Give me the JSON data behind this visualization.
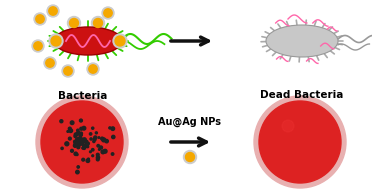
{
  "background_color": "#ffffff",
  "bacteria_color": "#cc1111",
  "bacteria_outline": "#990000",
  "dead_bacteria_color": "#c8c8c8",
  "dead_bacteria_outline": "#999999",
  "spike_color_live": "#33cc00",
  "spike_color_dead": "#aaaaaa",
  "flagella_color_live": "#33cc00",
  "flagella_color_dead": "#999999",
  "nanoparticle_gold_color": "#f5a800",
  "nanoparticle_shell_color": "#cccccc",
  "dna_color": "#ff66aa",
  "bacteria_label": "Bacteria",
  "dead_bacteria_label": "Dead Bacteria",
  "auag_label": "Au@Ag NPs",
  "arrow_color": "#111111",
  "petri_outer_color": "#e8b0b0",
  "petri_inner_color": "#dd2222",
  "colony_color": "#222222",
  "num_colonies": 90,
  "label_fontsize": 7.5,
  "auag_label_fontsize": 7
}
